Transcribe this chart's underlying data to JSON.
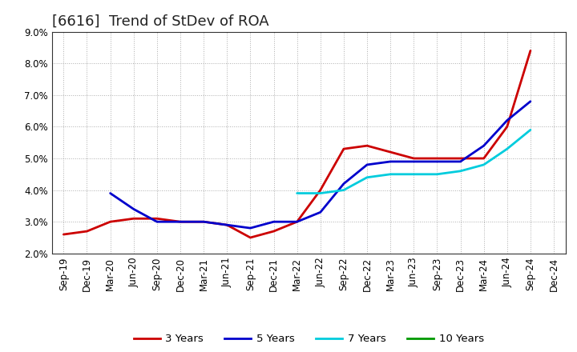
{
  "title": "[6616]  Trend of StDev of ROA",
  "ylim": [
    0.02,
    0.09
  ],
  "yticks": [
    0.02,
    0.03,
    0.04,
    0.05,
    0.06,
    0.07,
    0.08,
    0.09
  ],
  "xlabel_dates": [
    "Sep-19",
    "Dec-19",
    "Mar-20",
    "Jun-20",
    "Sep-20",
    "Dec-20",
    "Mar-21",
    "Jun-21",
    "Sep-21",
    "Dec-21",
    "Mar-22",
    "Jun-22",
    "Sep-22",
    "Dec-22",
    "Mar-23",
    "Jun-23",
    "Sep-23",
    "Dec-23",
    "Mar-24",
    "Jun-24",
    "Sep-24",
    "Dec-24"
  ],
  "series_3y": [
    0.026,
    0.027,
    0.03,
    0.031,
    0.031,
    0.03,
    0.03,
    0.029,
    0.025,
    0.027,
    0.03,
    0.04,
    0.053,
    0.054,
    0.052,
    0.05,
    0.05,
    0.05,
    0.05,
    0.06,
    0.084,
    null
  ],
  "series_5y": [
    null,
    null,
    0.039,
    0.034,
    0.03,
    0.03,
    0.03,
    0.029,
    0.028,
    0.03,
    0.03,
    0.033,
    0.042,
    0.048,
    0.049,
    0.049,
    0.049,
    0.049,
    0.054,
    0.062,
    0.068,
    null
  ],
  "series_7y": [
    null,
    null,
    null,
    null,
    null,
    null,
    null,
    null,
    null,
    null,
    0.039,
    0.039,
    0.04,
    0.044,
    0.045,
    0.045,
    0.045,
    0.046,
    0.048,
    0.053,
    0.059,
    null
  ],
  "series_10y": [
    null,
    null,
    null,
    null,
    null,
    null,
    null,
    null,
    null,
    null,
    null,
    null,
    null,
    null,
    null,
    null,
    null,
    null,
    null,
    null,
    null,
    null
  ],
  "color_3y": "#cc0000",
  "color_5y": "#0000cc",
  "color_7y": "#00ccdd",
  "color_10y": "#009900",
  "legend_labels": [
    "3 Years",
    "5 Years",
    "7 Years",
    "10 Years"
  ],
  "bg_color": "#ffffff",
  "plot_bg_color": "#ffffff",
  "grid_color": "#999999",
  "title_fontsize": 13,
  "axis_fontsize": 8.5,
  "legend_fontsize": 9.5
}
